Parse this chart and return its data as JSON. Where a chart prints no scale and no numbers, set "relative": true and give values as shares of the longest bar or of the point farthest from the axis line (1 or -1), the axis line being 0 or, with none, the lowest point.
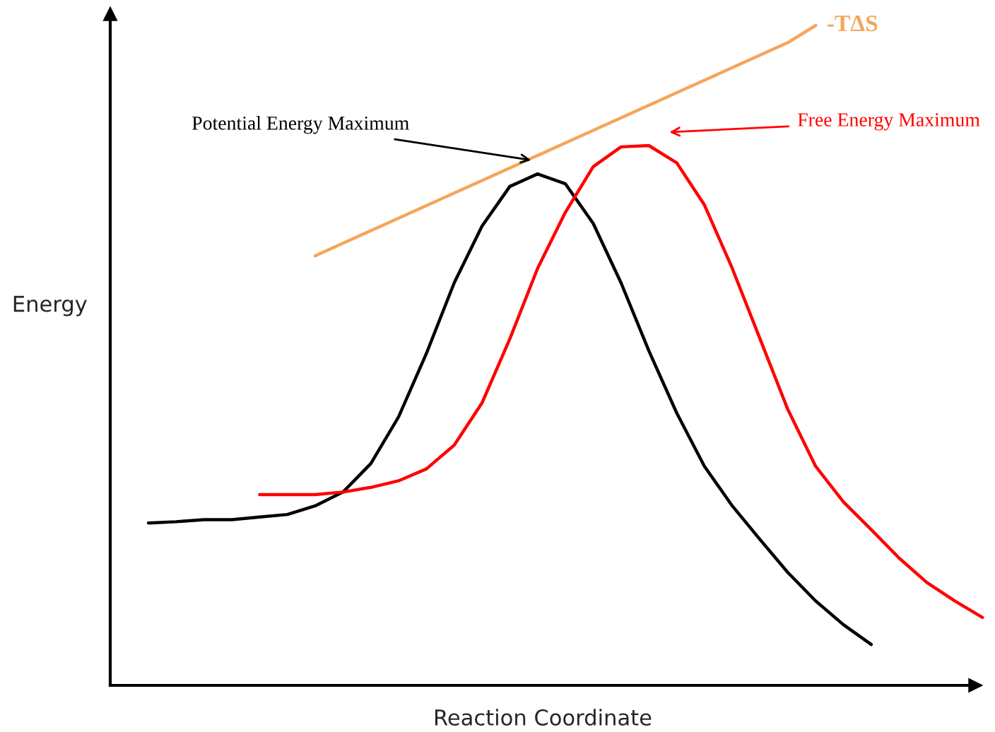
{
  "chart_data": {
    "type": "line",
    "relative": true,
    "xlabel": "Reaction Coordinate",
    "ylabel": "Energy",
    "legend": false,
    "marker": "none",
    "line_style": "solid",
    "categories": [
      null,
      null,
      null,
      null,
      null,
      null,
      null,
      null,
      null,
      null,
      null,
      null,
      null,
      null,
      null,
      null,
      null,
      null,
      null,
      null,
      null,
      null,
      null,
      null,
      null,
      null,
      null,
      null,
      null,
      null,
      null
    ],
    "series": [
      {
        "color": "#000000",
        "values": [
          0.246,
          0.248,
          0.251,
          0.251,
          0.255,
          0.259,
          0.272,
          0.293,
          0.336,
          0.407,
          0.503,
          0.61,
          0.696,
          0.756,
          0.775,
          0.76,
          0.7,
          0.61,
          0.507,
          0.413,
          0.332,
          0.272,
          0.221,
          0.171,
          0.128,
          0.092,
          0.062,
          null,
          null,
          null,
          null
        ]
      },
      {
        "color": "#ff0000",
        "values": [
          null,
          null,
          null,
          null,
          0.289,
          0.289,
          0.289,
          0.293,
          0.3,
          0.31,
          0.328,
          0.364,
          0.428,
          0.525,
          0.632,
          0.717,
          0.786,
          0.816,
          0.818,
          0.792,
          0.728,
          0.632,
          0.525,
          0.418,
          0.332,
          0.278,
          0.236,
          0.193,
          0.156,
          0.128,
          0.103
        ]
      },
      {
        "name": "-TΔS",
        "color": "#f5a55a",
        "values": [
          null,
          null,
          null,
          null,
          null,
          null,
          0.651,
          0.67,
          0.689,
          0.708,
          0.727,
          0.746,
          0.765,
          0.784,
          0.803,
          0.822,
          0.841,
          0.86,
          0.879,
          0.898,
          0.917,
          0.936,
          0.955,
          0.974,
          1.0,
          null,
          null,
          null,
          null,
          null,
          null
        ]
      }
    ],
    "annotations": [
      "Potential Energy Maximum",
      "Free Energy Maximum"
    ]
  }
}
